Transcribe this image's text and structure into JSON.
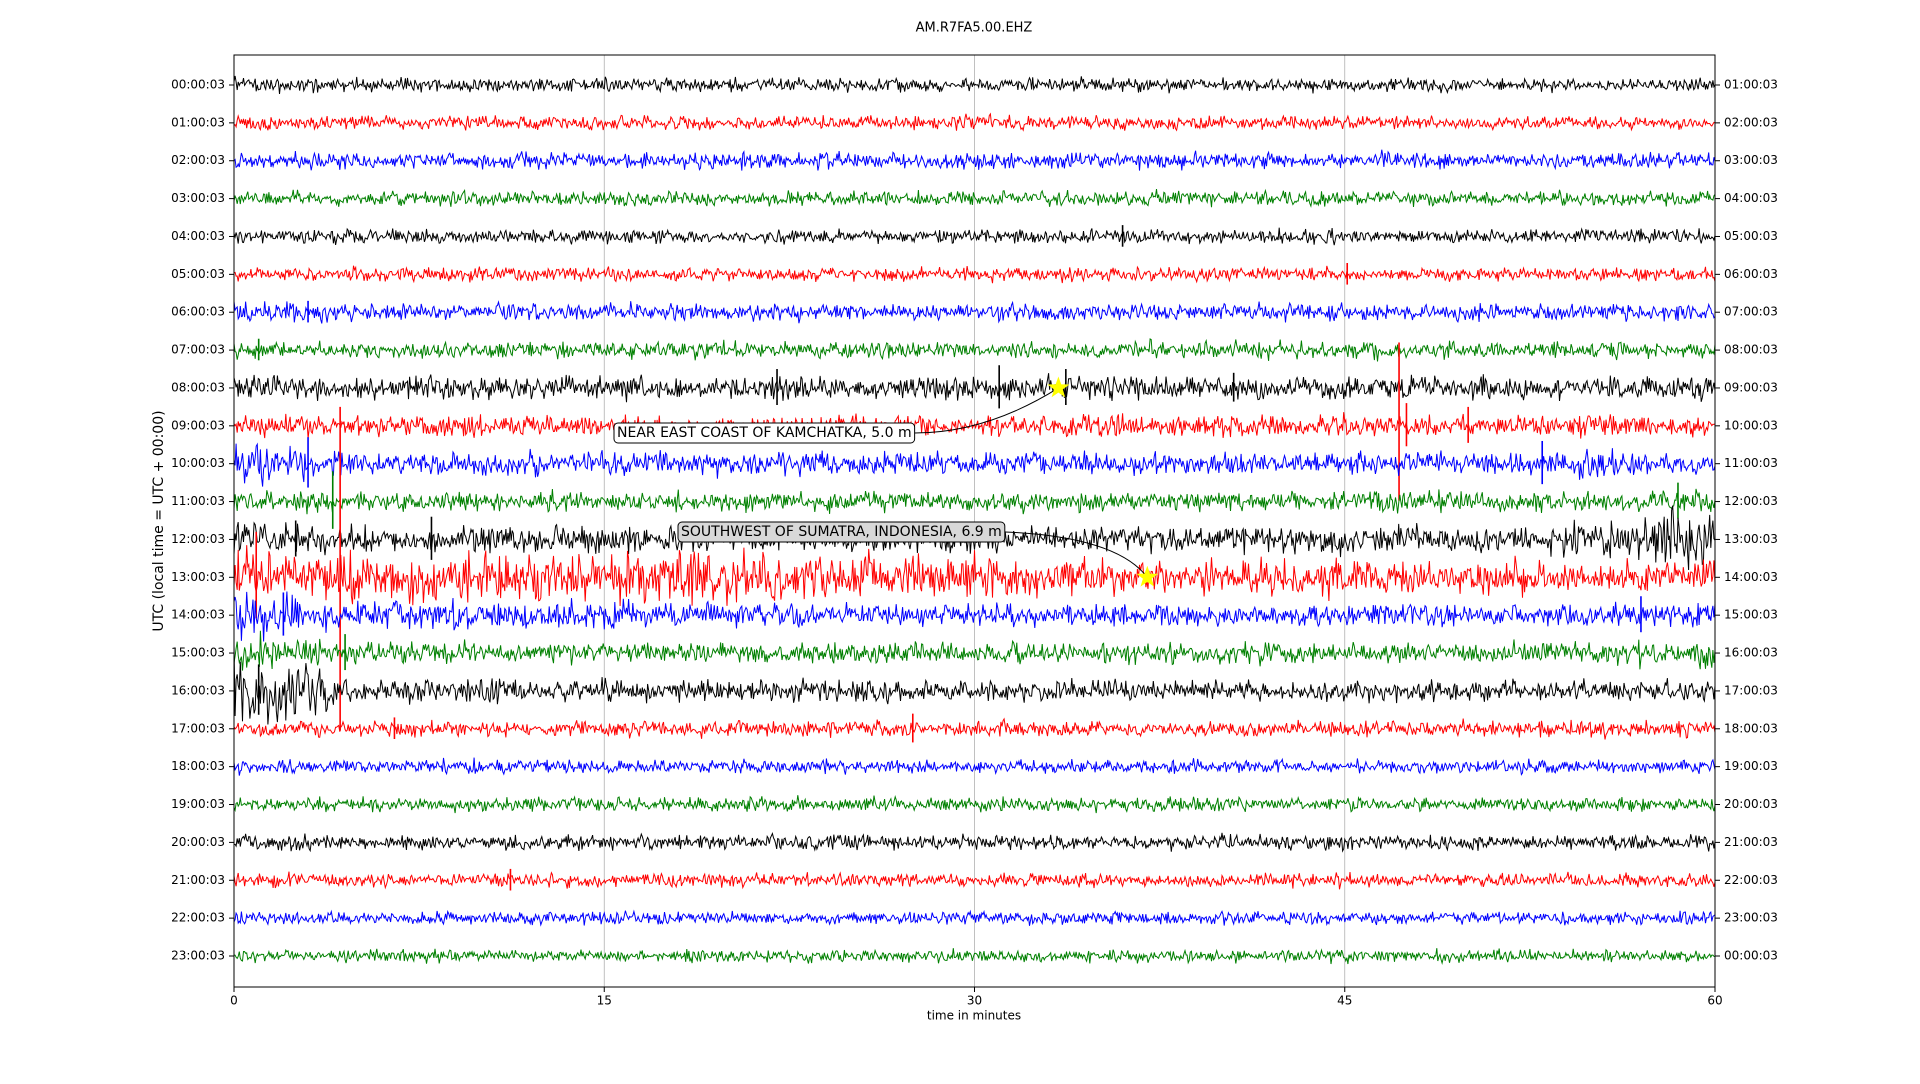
{
  "chart_data": {
    "type": "dayplot",
    "title": "AM.R7FA5.00.EHZ",
    "xlabel": "time in minutes",
    "ylabel": "UTC (local time = UTC + 00:00)",
    "xlim": [
      0,
      60
    ],
    "xticks": [
      0,
      15,
      30,
      45,
      60
    ],
    "grid": true,
    "x": [
      0,
      5,
      10,
      15,
      20,
      25,
      30,
      35,
      40,
      45,
      50,
      55,
      60
    ],
    "left_labels": [
      "00:00:03",
      "01:00:03",
      "02:00:03",
      "03:00:03",
      "04:00:03",
      "05:00:03",
      "06:00:03",
      "07:00:03",
      "08:00:03",
      "09:00:03",
      "10:00:03",
      "11:00:03",
      "12:00:03",
      "13:00:03",
      "14:00:03",
      "15:00:03",
      "16:00:03",
      "17:00:03",
      "18:00:03",
      "19:00:03",
      "20:00:03",
      "21:00:03",
      "22:00:03",
      "23:00:03"
    ],
    "right_labels": [
      "01:00:03",
      "02:00:03",
      "03:00:03",
      "04:00:03",
      "05:00:03",
      "06:00:03",
      "07:00:03",
      "08:00:03",
      "09:00:03",
      "10:00:03",
      "11:00:03",
      "12:00:03",
      "13:00:03",
      "14:00:03",
      "15:00:03",
      "16:00:03",
      "17:00:03",
      "18:00:03",
      "19:00:03",
      "20:00:03",
      "21:00:03",
      "22:00:03",
      "23:00:03",
      "00:00:03"
    ],
    "series": [
      {
        "color": "#000000",
        "values": [
          0.12,
          0.12,
          0.12,
          0.12,
          0.12,
          0.12,
          0.12,
          0.12,
          0.12,
          0.12,
          0.12,
          0.12,
          0.12
        ],
        "spikes": []
      },
      {
        "color": "#ff0000",
        "values": [
          0.12,
          0.12,
          0.12,
          0.12,
          0.12,
          0.12,
          0.12,
          0.12,
          0.12,
          0.12,
          0.12,
          0.12,
          0.12
        ],
        "spikes": []
      },
      {
        "color": "#0000ff",
        "values": [
          0.14,
          0.14,
          0.14,
          0.14,
          0.14,
          0.14,
          0.14,
          0.14,
          0.14,
          0.14,
          0.14,
          0.14,
          0.14
        ],
        "spikes": []
      },
      {
        "color": "#008000",
        "values": [
          0.13,
          0.13,
          0.13,
          0.13,
          0.13,
          0.13,
          0.13,
          0.13,
          0.13,
          0.13,
          0.13,
          0.13,
          0.13
        ],
        "spikes": []
      },
      {
        "color": "#000000",
        "values": [
          0.12,
          0.12,
          0.12,
          0.12,
          0.12,
          0.12,
          0.12,
          0.12,
          0.12,
          0.12,
          0.12,
          0.12,
          0.12
        ],
        "spikes": [
          [
            36,
            0.3
          ]
        ]
      },
      {
        "color": "#ff0000",
        "values": [
          0.12,
          0.12,
          0.12,
          0.12,
          0.12,
          0.12,
          0.12,
          0.12,
          0.12,
          0.12,
          0.12,
          0.12,
          0.12
        ],
        "spikes": [
          [
            45.1,
            0.3
          ]
        ]
      },
      {
        "color": "#0000ff",
        "values": [
          0.2,
          0.15,
          0.15,
          0.15,
          0.15,
          0.15,
          0.15,
          0.15,
          0.15,
          0.15,
          0.15,
          0.15,
          0.15
        ],
        "spikes": [
          [
            3,
            0.3
          ]
        ]
      },
      {
        "color": "#008000",
        "values": [
          0.15,
          0.15,
          0.15,
          0.15,
          0.15,
          0.15,
          0.15,
          0.15,
          0.15,
          0.15,
          0.15,
          0.15,
          0.15
        ],
        "spikes": [
          [
            1,
            0.3
          ]
        ]
      },
      {
        "color": "#000000",
        "values": [
          0.2,
          0.2,
          0.2,
          0.2,
          0.2,
          0.2,
          0.2,
          0.22,
          0.2,
          0.2,
          0.2,
          0.2,
          0.2
        ],
        "spikes": [
          [
            22,
            0.5
          ],
          [
            31,
            0.6
          ],
          [
            33.7,
            0.5
          ],
          [
            40.5,
            0.4
          ]
        ]
      },
      {
        "color": "#ff0000",
        "values": [
          0.18,
          0.18,
          0.18,
          0.18,
          0.18,
          0.18,
          0.18,
          0.18,
          0.18,
          0.18,
          0.18,
          0.18,
          0.18
        ],
        "spikes": [
          [
            47.2,
            2.2
          ],
          [
            47.5,
            0.6
          ],
          [
            50,
            0.5
          ]
        ]
      },
      {
        "color": "#0000ff",
        "values": [
          0.4,
          0.2,
          0.2,
          0.2,
          0.2,
          0.2,
          0.2,
          0.2,
          0.2,
          0.2,
          0.2,
          0.25,
          0.2
        ],
        "spikes": [
          [
            3,
            0.7
          ],
          [
            53,
            0.6
          ]
        ]
      },
      {
        "color": "#008000",
        "values": [
          0.18,
          0.18,
          0.18,
          0.18,
          0.18,
          0.18,
          0.18,
          0.18,
          0.18,
          0.18,
          0.18,
          0.18,
          0.25
        ],
        "spikes": [
          [
            4,
            0.8
          ],
          [
            58.5,
            0.5
          ]
        ]
      },
      {
        "color": "#000000",
        "values": [
          0.35,
          0.25,
          0.25,
          0.22,
          0.22,
          0.22,
          0.22,
          0.22,
          0.22,
          0.25,
          0.25,
          0.3,
          0.6
        ],
        "spikes": [
          [
            2.5,
            0.5
          ],
          [
            8,
            0.6
          ]
        ]
      },
      {
        "color": "#ff0000",
        "values": [
          0.5,
          0.45,
          0.45,
          0.45,
          0.45,
          0.4,
          0.4,
          0.3,
          0.3,
          0.3,
          0.3,
          0.3,
          0.3
        ],
        "spikes": [
          [
            4.3,
            4.5
          ],
          [
            0.9,
            1.2
          ]
        ]
      },
      {
        "color": "#0000ff",
        "values": [
          0.5,
          0.25,
          0.25,
          0.25,
          0.2,
          0.2,
          0.2,
          0.2,
          0.2,
          0.2,
          0.2,
          0.2,
          0.25
        ],
        "spikes": [
          [
            2,
            0.6
          ],
          [
            57,
            0.5
          ]
        ]
      },
      {
        "color": "#008000",
        "values": [
          0.4,
          0.2,
          0.18,
          0.18,
          0.18,
          0.18,
          0.18,
          0.18,
          0.18,
          0.18,
          0.18,
          0.2,
          0.3
        ],
        "spikes": [
          [
            4.5,
            0.5
          ]
        ]
      },
      {
        "color": "#000000",
        "values": [
          0.7,
          0.22,
          0.2,
          0.2,
          0.2,
          0.2,
          0.18,
          0.18,
          0.18,
          0.18,
          0.18,
          0.18,
          0.2
        ],
        "spikes": [
          [
            1,
            0.7
          ]
        ]
      },
      {
        "color": "#ff0000",
        "values": [
          0.14,
          0.14,
          0.14,
          0.14,
          0.14,
          0.14,
          0.14,
          0.14,
          0.14,
          0.14,
          0.14,
          0.14,
          0.14
        ],
        "spikes": [
          [
            27.5,
            0.4
          ],
          [
            6.5,
            0.3
          ]
        ]
      },
      {
        "color": "#0000ff",
        "values": [
          0.12,
          0.12,
          0.12,
          0.12,
          0.12,
          0.12,
          0.12,
          0.12,
          0.12,
          0.12,
          0.12,
          0.12,
          0.12
        ],
        "spikes": []
      },
      {
        "color": "#008000",
        "values": [
          0.12,
          0.12,
          0.12,
          0.12,
          0.12,
          0.12,
          0.12,
          0.12,
          0.12,
          0.12,
          0.12,
          0.12,
          0.12
        ],
        "spikes": []
      },
      {
        "color": "#000000",
        "values": [
          0.13,
          0.13,
          0.13,
          0.13,
          0.13,
          0.13,
          0.13,
          0.13,
          0.13,
          0.13,
          0.13,
          0.13,
          0.13
        ],
        "spikes": []
      },
      {
        "color": "#ff0000",
        "values": [
          0.12,
          0.12,
          0.12,
          0.12,
          0.12,
          0.12,
          0.12,
          0.12,
          0.12,
          0.12,
          0.12,
          0.12,
          0.12
        ],
        "spikes": [
          [
            11.2,
            0.3
          ]
        ]
      },
      {
        "color": "#0000ff",
        "values": [
          0.11,
          0.11,
          0.11,
          0.11,
          0.11,
          0.11,
          0.11,
          0.11,
          0.11,
          0.11,
          0.11,
          0.11,
          0.11
        ],
        "spikes": []
      },
      {
        "color": "#008000",
        "values": [
          0.11,
          0.11,
          0.11,
          0.11,
          0.11,
          0.11,
          0.11,
          0.11,
          0.11,
          0.11,
          0.11,
          0.11,
          0.11
        ],
        "spikes": []
      }
    ],
    "events": [
      {
        "label": "NEAR EAST COAST OF KAMCHATKA, 5.0 m",
        "x": 33.4,
        "row": 8
      },
      {
        "label": "SOUTHWEST OF SUMATRA, INDONESIA, 6.9 m",
        "x": 37.0,
        "row": 13
      }
    ]
  }
}
